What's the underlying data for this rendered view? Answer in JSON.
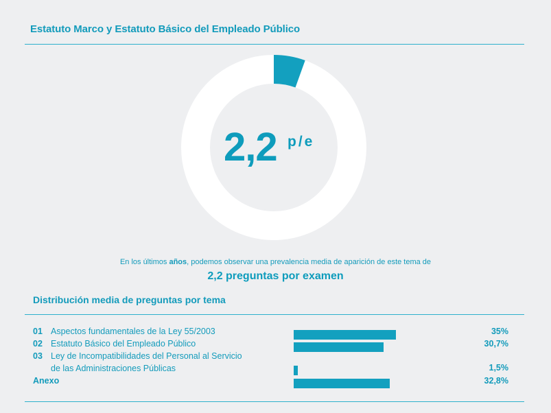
{
  "title": "Estatuto Marco y Estatuto Básico del Empleado Público",
  "donut": {
    "value": "2,2",
    "unit": "p/e",
    "fraction": 0.055,
    "track_color": "#ffffff",
    "fill_color": "#13a0bf"
  },
  "summary": {
    "pre": "En los últimos ",
    "bold": "años",
    "post": ", podemos observar una prevalencia media de aparición de este tema de"
  },
  "headline": "2,2 preguntas por examen",
  "distribution_title": "Distribución media de preguntas por tema",
  "rows": [
    {
      "num": "01",
      "label": "Aspectos fundamentales de la Ley 55/2003",
      "pct_label": "35%",
      "value": 35
    },
    {
      "num": "02",
      "label": "Estatuto Básico del Empleado Público",
      "pct_label": "30,7%",
      "value": 30.7
    },
    {
      "num": "03",
      "label_line1": "Ley de Incompatibilidades del Personal al Servicio",
      "label_line2": "de las Administraciones Públicas",
      "pct_label": "1,5%",
      "value": 1.5
    },
    {
      "num": "",
      "label": "Anexo",
      "pct_label": "32,8%",
      "value": 32.8
    }
  ],
  "colors": {
    "accent": "#13a0bf",
    "background": "#eeeff1"
  }
}
